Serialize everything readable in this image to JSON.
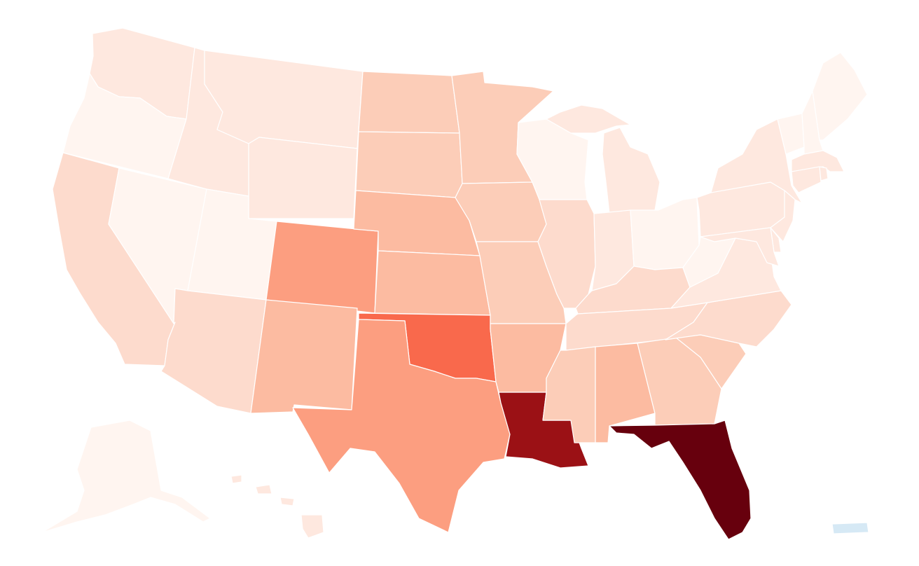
{
  "map": {
    "type": "choropleth",
    "colors": {
      "c0": "#fff5f0",
      "c1": "#fee8df",
      "c2": "#fddbcd",
      "c3": "#fccdb8",
      "c4": "#fcbba1",
      "c5": "#fc9e80",
      "c6": "#f9694c",
      "c7": "#9b1115",
      "c8": "#67000d",
      "pr": "#d6e9f5"
    },
    "states": [
      {
        "id": "WA",
        "level": "c1"
      },
      {
        "id": "OR",
        "level": "c0"
      },
      {
        "id": "CA",
        "level": "c2"
      },
      {
        "id": "NV",
        "level": "c0"
      },
      {
        "id": "ID",
        "level": "c1"
      },
      {
        "id": "MT",
        "level": "c1"
      },
      {
        "id": "WY",
        "level": "c1"
      },
      {
        "id": "UT",
        "level": "c0"
      },
      {
        "id": "AZ",
        "level": "c2"
      },
      {
        "id": "CO",
        "level": "c5"
      },
      {
        "id": "NM",
        "level": "c4"
      },
      {
        "id": "ND",
        "level": "c3"
      },
      {
        "id": "SD",
        "level": "c3"
      },
      {
        "id": "NE",
        "level": "c4"
      },
      {
        "id": "KS",
        "level": "c4"
      },
      {
        "id": "OK",
        "level": "c6"
      },
      {
        "id": "TX",
        "level": "c5"
      },
      {
        "id": "MN",
        "level": "c3"
      },
      {
        "id": "IA",
        "level": "c3"
      },
      {
        "id": "MO",
        "level": "c3"
      },
      {
        "id": "AR",
        "level": "c4"
      },
      {
        "id": "LA",
        "level": "c7"
      },
      {
        "id": "WI",
        "level": "c0"
      },
      {
        "id": "IL",
        "level": "c2"
      },
      {
        "id": "MI",
        "level": "c1"
      },
      {
        "id": "IN",
        "level": "c1"
      },
      {
        "id": "OH",
        "level": "c0"
      },
      {
        "id": "KY",
        "level": "c2"
      },
      {
        "id": "TN",
        "level": "c2"
      },
      {
        "id": "MS",
        "level": "c3"
      },
      {
        "id": "AL",
        "level": "c4"
      },
      {
        "id": "GA",
        "level": "c3"
      },
      {
        "id": "FL",
        "level": "c8"
      },
      {
        "id": "SC",
        "level": "c3"
      },
      {
        "id": "NC",
        "level": "c2"
      },
      {
        "id": "VA",
        "level": "c1"
      },
      {
        "id": "WV",
        "level": "c0"
      },
      {
        "id": "PA",
        "level": "c1"
      },
      {
        "id": "NY",
        "level": "c1"
      },
      {
        "id": "VT",
        "level": "c0"
      },
      {
        "id": "NH",
        "level": "c0"
      },
      {
        "id": "ME",
        "level": "c0"
      },
      {
        "id": "MA",
        "level": "c1"
      },
      {
        "id": "RI",
        "level": "c1"
      },
      {
        "id": "CT",
        "level": "c1"
      },
      {
        "id": "NJ",
        "level": "c1"
      },
      {
        "id": "DE",
        "level": "c1"
      },
      {
        "id": "MD",
        "level": "c1"
      },
      {
        "id": "AK",
        "level": "c0"
      },
      {
        "id": "HI",
        "level": "c1"
      },
      {
        "id": "PR",
        "level": "pr"
      }
    ]
  }
}
